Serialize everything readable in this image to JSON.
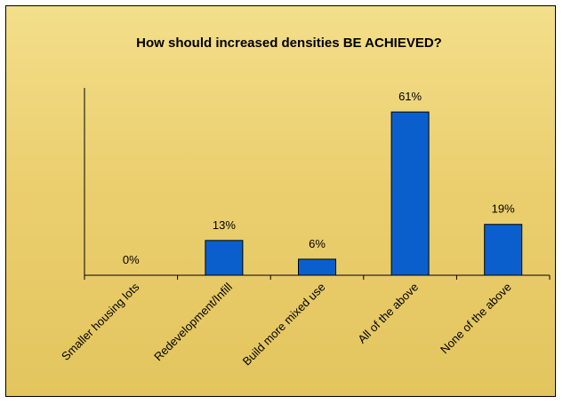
{
  "chart_data": {
    "type": "bar",
    "title": "How should increased densities BE ACHIEVED?",
    "categories": [
      "Smaller housing lots",
      "Redevelopment/Infill",
      "Build more mixed use",
      "All of the above",
      "None of the above"
    ],
    "values": [
      0,
      13,
      6,
      61,
      19
    ],
    "data_labels": [
      "0%",
      "13%",
      "6%",
      "61%",
      "19%"
    ],
    "ylim": [
      0,
      70
    ],
    "grid": false,
    "legend": "none",
    "bar_color": "#0a5fcc",
    "bar_edge_color": "#000000",
    "background_color": "#ebd074"
  }
}
